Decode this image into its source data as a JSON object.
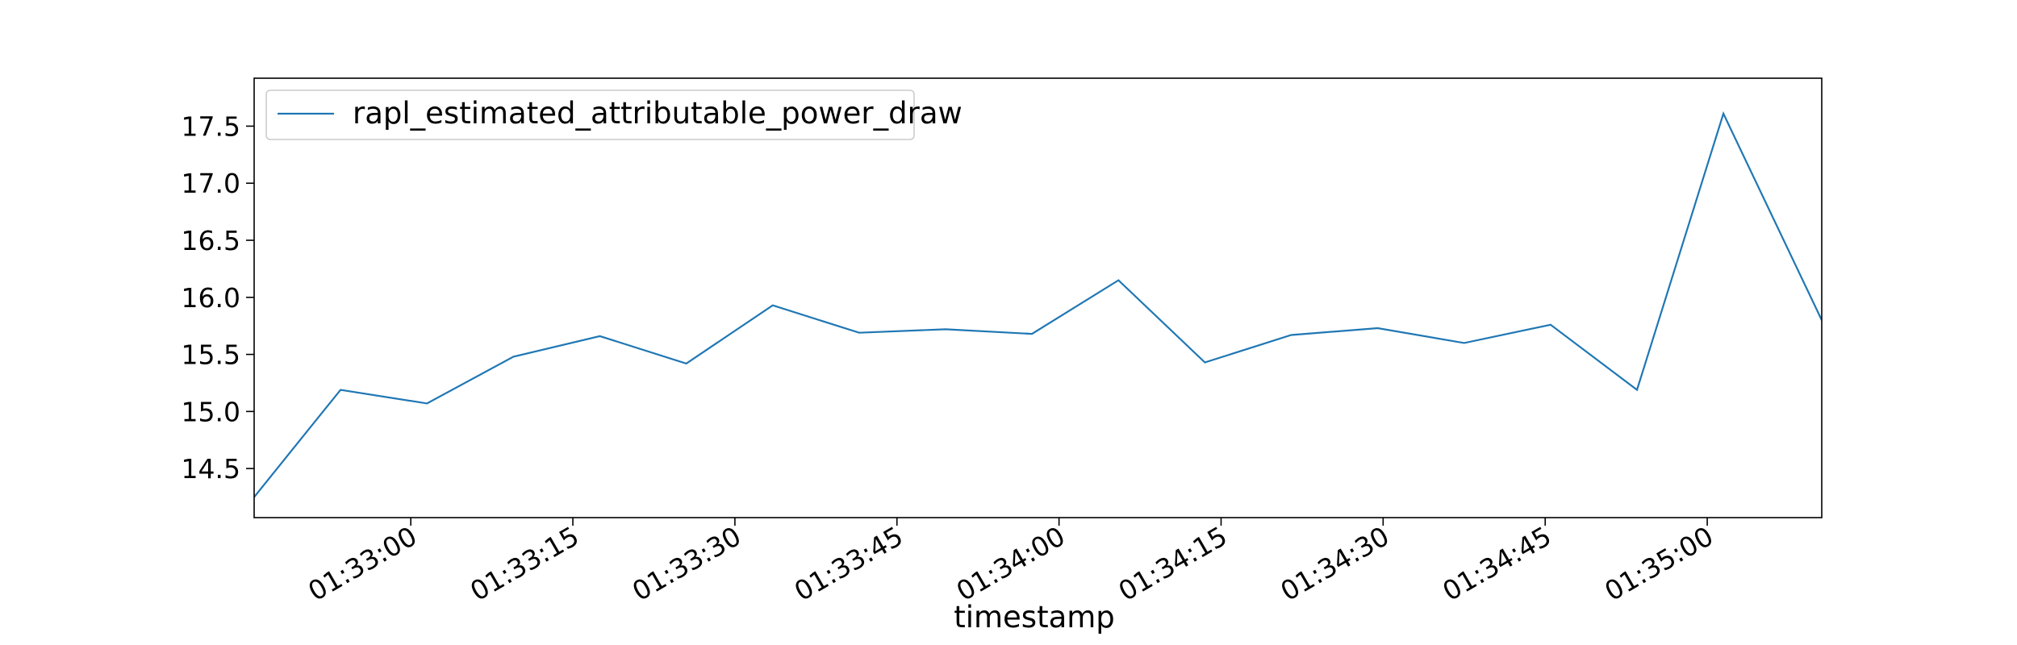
{
  "chart_data": {
    "type": "line",
    "title": "",
    "xlabel": "timestamp",
    "ylabel": "",
    "x_tick_labels": [
      "01:33:00",
      "01:33:15",
      "01:33:30",
      "01:33:45",
      "01:34:00",
      "01:34:15",
      "01:34:30",
      "01:34:45",
      "01:35:00"
    ],
    "y_tick_labels": [
      "14.5",
      "15.0",
      "15.5",
      "16.0",
      "16.5",
      "17.0",
      "17.5"
    ],
    "xlim": [
      "01:32:45.5",
      "01:35:10.6"
    ],
    "ylim": [
      14.07,
      17.92
    ],
    "grid": false,
    "legend_position": "upper-left",
    "series": [
      {
        "name": "rapl_estimated_attributable_power_draw",
        "color": "#1f77b4",
        "x": [
          "01:32:45.5",
          "01:32:53.5",
          "01:33:01.5",
          "01:33:09.5",
          "01:33:17.5",
          "01:33:25.5",
          "01:33:33.5",
          "01:33:41.5",
          "01:33:49.5",
          "01:33:57.5",
          "01:34:05.5",
          "01:34:13.5",
          "01:34:21.5",
          "01:34:29.5",
          "01:34:37.5",
          "01:34:45.5",
          "01:34:53.5",
          "01:35:01.5",
          "01:35:10.6"
        ],
        "values": [
          14.25,
          15.19,
          15.07,
          15.48,
          15.66,
          15.42,
          15.93,
          15.69,
          15.72,
          15.68,
          16.15,
          15.43,
          15.67,
          15.73,
          15.6,
          15.76,
          15.19,
          17.61,
          15.8
        ]
      }
    ]
  }
}
